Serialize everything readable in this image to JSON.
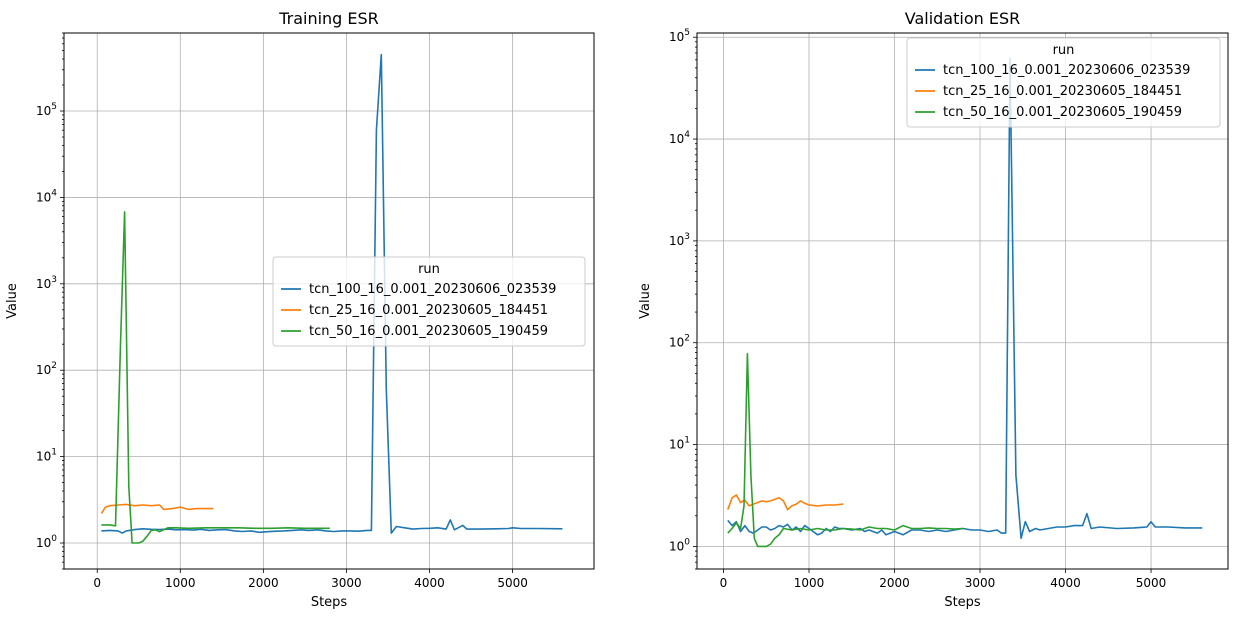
{
  "chart_data": [
    {
      "type": "line",
      "title": "Training ESR",
      "xlabel": "Steps",
      "ylabel": "Value",
      "yscale": "log",
      "xlim": [
        -400,
        5980
      ],
      "ylim": [
        0.5,
        800000
      ],
      "xticks": [
        0,
        1000,
        2000,
        3000,
        4000,
        5000
      ],
      "xtick_labels": [
        "0",
        "1000",
        "2000",
        "3000",
        "4000",
        "5000"
      ],
      "yticks": [
        1,
        10,
        100,
        1000,
        10000,
        100000
      ],
      "ytick_labels": [
        "10^0",
        "10^1",
        "10^2",
        "10^3",
        "10^4",
        "10^5"
      ],
      "grid": true,
      "legend": {
        "title": "run",
        "position": "center-right"
      },
      "series": [
        {
          "name": "tcn_100_16_0.001_20230606_023539",
          "color": "#1f77b4",
          "points": [
            [
              50,
              1.38
            ],
            [
              150,
              1.4
            ],
            [
              250,
              1.38
            ],
            [
              300,
              1.3
            ],
            [
              350,
              1.38
            ],
            [
              450,
              1.43
            ],
            [
              550,
              1.46
            ],
            [
              650,
              1.44
            ],
            [
              750,
              1.43
            ],
            [
              850,
              1.45
            ],
            [
              950,
              1.42
            ],
            [
              1050,
              1.43
            ],
            [
              1150,
              1.41
            ],
            [
              1250,
              1.44
            ],
            [
              1350,
              1.4
            ],
            [
              1450,
              1.42
            ],
            [
              1550,
              1.43
            ],
            [
              1650,
              1.38
            ],
            [
              1750,
              1.36
            ],
            [
              1850,
              1.38
            ],
            [
              1950,
              1.33
            ],
            [
              2050,
              1.35
            ],
            [
              2150,
              1.37
            ],
            [
              2250,
              1.38
            ],
            [
              2350,
              1.4
            ],
            [
              2450,
              1.42
            ],
            [
              2550,
              1.4
            ],
            [
              2650,
              1.42
            ],
            [
              2750,
              1.38
            ],
            [
              2850,
              1.36
            ],
            [
              2950,
              1.38
            ],
            [
              3050,
              1.38
            ],
            [
              3150,
              1.37
            ],
            [
              3250,
              1.4
            ],
            [
              3300,
              1.4
            ],
            [
              3360,
              60000
            ],
            [
              3420,
              450000
            ],
            [
              3480,
              60
            ],
            [
              3540,
              1.3
            ],
            [
              3600,
              1.55
            ],
            [
              3700,
              1.5
            ],
            [
              3800,
              1.45
            ],
            [
              3900,
              1.47
            ],
            [
              4000,
              1.48
            ],
            [
              4100,
              1.5
            ],
            [
              4200,
              1.45
            ],
            [
              4250,
              1.85
            ],
            [
              4300,
              1.42
            ],
            [
              4400,
              1.6
            ],
            [
              4450,
              1.45
            ],
            [
              4600,
              1.45
            ],
            [
              4800,
              1.46
            ],
            [
              4950,
              1.47
            ],
            [
              5000,
              1.5
            ],
            [
              5100,
              1.47
            ],
            [
              5300,
              1.47
            ],
            [
              5600,
              1.46
            ]
          ]
        },
        {
          "name": "tcn_25_16_0.001_20230605_184451",
          "color": "#ff7f0e",
          "points": [
            [
              50,
              2.2
            ],
            [
              100,
              2.6
            ],
            [
              150,
              2.7
            ],
            [
              250,
              2.75
            ],
            [
              350,
              2.8
            ],
            [
              450,
              2.7
            ],
            [
              550,
              2.75
            ],
            [
              650,
              2.7
            ],
            [
              750,
              2.75
            ],
            [
              800,
              2.45
            ],
            [
              900,
              2.5
            ],
            [
              1000,
              2.6
            ],
            [
              1100,
              2.45
            ],
            [
              1200,
              2.5
            ],
            [
              1300,
              2.5
            ],
            [
              1400,
              2.5
            ]
          ]
        },
        {
          "name": "tcn_50_16_0.001_20230605_190459",
          "color": "#2ca02c",
          "points": [
            [
              50,
              1.62
            ],
            [
              150,
              1.62
            ],
            [
              220,
              1.58
            ],
            [
              280,
              200
            ],
            [
              330,
              6800
            ],
            [
              380,
              4.5
            ],
            [
              420,
              1.0
            ],
            [
              500,
              1.0
            ],
            [
              550,
              1.05
            ],
            [
              600,
              1.2
            ],
            [
              650,
              1.4
            ],
            [
              700,
              1.42
            ],
            [
              750,
              1.35
            ],
            [
              850,
              1.5
            ],
            [
              950,
              1.5
            ],
            [
              1100,
              1.48
            ],
            [
              1300,
              1.5
            ],
            [
              1500,
              1.5
            ],
            [
              1700,
              1.5
            ],
            [
              1900,
              1.48
            ],
            [
              2100,
              1.48
            ],
            [
              2300,
              1.5
            ],
            [
              2500,
              1.48
            ],
            [
              2700,
              1.48
            ],
            [
              2800,
              1.48
            ]
          ]
        }
      ]
    },
    {
      "type": "line",
      "title": "Validation ESR",
      "xlabel": "Steps",
      "ylabel": "Value",
      "yscale": "log",
      "xlim": [
        -310,
        5900
      ],
      "ylim": [
        0.6,
        110000
      ],
      "xticks": [
        0,
        1000,
        2000,
        3000,
        4000,
        5000
      ],
      "xtick_labels": [
        "0",
        "1000",
        "2000",
        "3000",
        "4000",
        "5000"
      ],
      "yticks": [
        1,
        10,
        100,
        1000,
        10000,
        100000
      ],
      "ytick_labels": [
        "10^0",
        "10^1",
        "10^2",
        "10^3",
        "10^4",
        "10^5"
      ],
      "grid": true,
      "legend": {
        "title": "run",
        "position": "upper-right"
      },
      "series": [
        {
          "name": "tcn_100_16_0.001_20230606_023539",
          "color": "#1f77b4",
          "points": [
            [
              50,
              1.8
            ],
            [
              100,
              1.6
            ],
            [
              150,
              1.75
            ],
            [
              200,
              1.4
            ],
            [
              250,
              1.6
            ],
            [
              300,
              1.4
            ],
            [
              350,
              1.35
            ],
            [
              400,
              1.45
            ],
            [
              450,
              1.55
            ],
            [
              500,
              1.55
            ],
            [
              550,
              1.45
            ],
            [
              600,
              1.5
            ],
            [
              650,
              1.6
            ],
            [
              700,
              1.55
            ],
            [
              750,
              1.65
            ],
            [
              800,
              1.45
            ],
            [
              850,
              1.55
            ],
            [
              900,
              1.4
            ],
            [
              950,
              1.6
            ],
            [
              1000,
              1.5
            ],
            [
              1100,
              1.3
            ],
            [
              1150,
              1.35
            ],
            [
              1200,
              1.5
            ],
            [
              1250,
              1.4
            ],
            [
              1300,
              1.55
            ],
            [
              1350,
              1.5
            ],
            [
              1400,
              1.5
            ],
            [
              1500,
              1.45
            ],
            [
              1600,
              1.5
            ],
            [
              1650,
              1.4
            ],
            [
              1700,
              1.45
            ],
            [
              1800,
              1.35
            ],
            [
              1850,
              1.45
            ],
            [
              1900,
              1.3
            ],
            [
              2000,
              1.4
            ],
            [
              2100,
              1.3
            ],
            [
              2200,
              1.45
            ],
            [
              2300,
              1.45
            ],
            [
              2400,
              1.4
            ],
            [
              2500,
              1.45
            ],
            [
              2600,
              1.4
            ],
            [
              2700,
              1.45
            ],
            [
              2800,
              1.5
            ],
            [
              2900,
              1.45
            ],
            [
              3000,
              1.45
            ],
            [
              3100,
              1.4
            ],
            [
              3200,
              1.45
            ],
            [
              3250,
              1.35
            ],
            [
              3300,
              1.35
            ],
            [
              3350,
              62000
            ],
            [
              3420,
              5
            ],
            [
              3480,
              1.2
            ],
            [
              3530,
              1.75
            ],
            [
              3580,
              1.4
            ],
            [
              3650,
              1.5
            ],
            [
              3700,
              1.45
            ],
            [
              3800,
              1.5
            ],
            [
              3900,
              1.55
            ],
            [
              4000,
              1.55
            ],
            [
              4100,
              1.6
            ],
            [
              4200,
              1.6
            ],
            [
              4250,
              2.1
            ],
            [
              4300,
              1.5
            ],
            [
              4400,
              1.55
            ],
            [
              4600,
              1.5
            ],
            [
              4800,
              1.52
            ],
            [
              4950,
              1.55
            ],
            [
              5000,
              1.75
            ],
            [
              5050,
              1.55
            ],
            [
              5200,
              1.55
            ],
            [
              5400,
              1.52
            ],
            [
              5600,
              1.52
            ]
          ]
        },
        {
          "name": "tcn_25_16_0.001_20230605_184451",
          "color": "#ff7f0e",
          "points": [
            [
              50,
              2.3
            ],
            [
              100,
              3.0
            ],
            [
              150,
              3.2
            ],
            [
              200,
              2.7
            ],
            [
              250,
              2.85
            ],
            [
              300,
              2.5
            ],
            [
              350,
              2.6
            ],
            [
              400,
              2.7
            ],
            [
              450,
              2.8
            ],
            [
              500,
              2.75
            ],
            [
              550,
              2.8
            ],
            [
              650,
              3.0
            ],
            [
              700,
              2.8
            ],
            [
              750,
              2.3
            ],
            [
              800,
              2.5
            ],
            [
              850,
              2.6
            ],
            [
              900,
              2.8
            ],
            [
              950,
              2.65
            ],
            [
              1000,
              2.55
            ],
            [
              1100,
              2.5
            ],
            [
              1200,
              2.55
            ],
            [
              1300,
              2.55
            ],
            [
              1400,
              2.6
            ]
          ]
        },
        {
          "name": "tcn_50_16_0.001_20230605_190459",
          "color": "#2ca02c",
          "points": [
            [
              50,
              1.35
            ],
            [
              100,
              1.5
            ],
            [
              150,
              1.7
            ],
            [
              200,
              1.5
            ],
            [
              240,
              2.5
            ],
            [
              280,
              78
            ],
            [
              320,
              5
            ],
            [
              360,
              1.2
            ],
            [
              400,
              1.0
            ],
            [
              500,
              1.0
            ],
            [
              550,
              1.05
            ],
            [
              600,
              1.2
            ],
            [
              650,
              1.3
            ],
            [
              700,
              1.5
            ],
            [
              800,
              1.45
            ],
            [
              900,
              1.5
            ],
            [
              1000,
              1.45
            ],
            [
              1100,
              1.5
            ],
            [
              1200,
              1.45
            ],
            [
              1300,
              1.45
            ],
            [
              1400,
              1.5
            ],
            [
              1500,
              1.48
            ],
            [
              1600,
              1.45
            ],
            [
              1700,
              1.55
            ],
            [
              1800,
              1.5
            ],
            [
              1900,
              1.5
            ],
            [
              2000,
              1.45
            ],
            [
              2100,
              1.6
            ],
            [
              2200,
              1.5
            ],
            [
              2300,
              1.5
            ],
            [
              2400,
              1.52
            ],
            [
              2500,
              1.5
            ],
            [
              2600,
              1.5
            ],
            [
              2700,
              1.48
            ],
            [
              2800,
              1.5
            ]
          ]
        }
      ]
    }
  ]
}
